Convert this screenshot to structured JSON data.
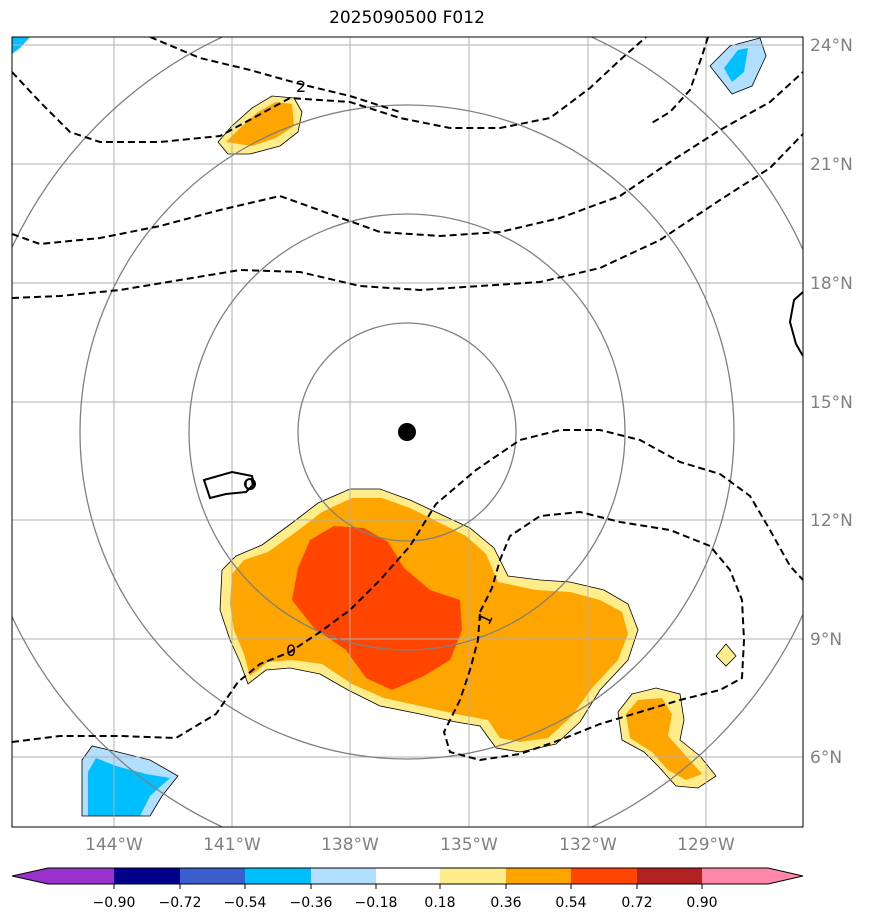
{
  "title": "2025090500 F012",
  "lat_labels": [
    "24°N",
    "21°N",
    "18°N",
    "15°N",
    "12°N",
    "9°N",
    "6°N"
  ],
  "lon_labels": [
    "144°W",
    "141°W",
    "138°W",
    "135°W",
    "132°W",
    "129°W"
  ],
  "contour_labels": [
    "2",
    "0",
    "1",
    "0"
  ],
  "colorbar": {
    "ticks": [
      "−0.90",
      "−0.72",
      "−0.54",
      "−0.36",
      "−0.18",
      "0.18",
      "0.36",
      "0.54",
      "0.72",
      "0.90"
    ],
    "colors": [
      "#9932cc",
      "#00008b",
      "#3a5fcd",
      "#00bfff",
      "#b2dfff",
      "#ffffff",
      "#ffec8b",
      "#ffa500",
      "#ff4500",
      "#b22222",
      "#ff88aa"
    ]
  },
  "colors": {
    "yellow": "#ffec8b",
    "orange": "#ffa500",
    "red": "#ff4500",
    "lightblue": "#b2dfff",
    "cyan": "#00bfff"
  }
}
